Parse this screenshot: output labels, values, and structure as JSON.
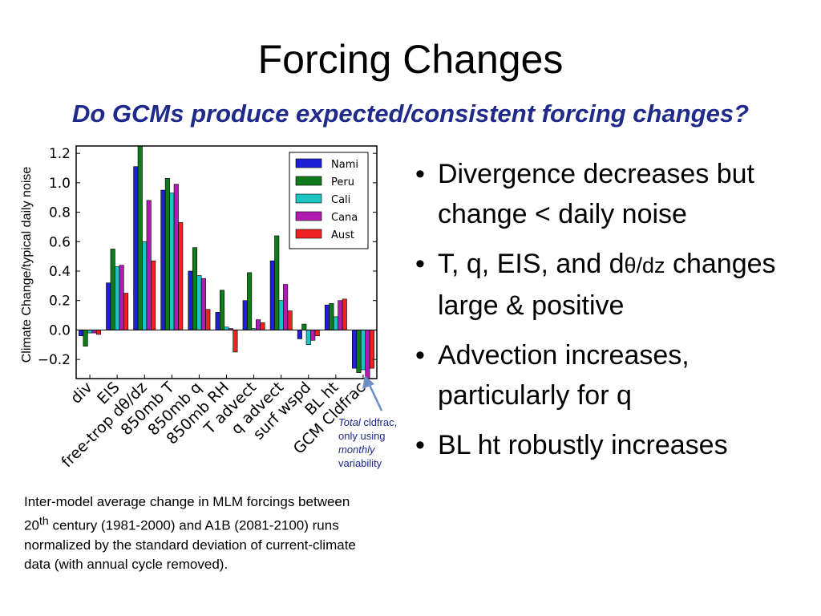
{
  "slide": {
    "title": "Forcing Changes",
    "subtitle": "Do GCMs produce expected/consistent forcing changes?",
    "note": {
      "w1": "Total",
      "w2": " cldfrac,",
      "w3": "only using",
      "w4": "monthly",
      "w5": "variability"
    },
    "caption": {
      "part1": "Inter-model average change in MLM forcings between 20",
      "sup": "th",
      "part2": " century (1981-2000) and A1B (2081-2100) runs normalized by the standard deviation of current-climate data (with annual cycle removed)."
    },
    "bullets": [
      {
        "text": "Divergence decreases but change < daily noise"
      },
      {
        "pre": "T, q, EIS, and d",
        "sym": "θ/dz",
        "post": " changes large & positive"
      },
      {
        "text": "Advection increases, particularly for q"
      },
      {
        "text": "BL ht robustly increases"
      }
    ],
    "bullet_glyph": "•"
  },
  "chart_data": {
    "type": "bar",
    "ylabel": "Climate Change/typical daily noise",
    "ylim": [
      -0.33,
      1.25
    ],
    "yticks": [
      "1.2",
      "1.0",
      "0.8",
      "0.6",
      "0.4",
      "0.2",
      "0.0",
      "−0.2"
    ],
    "ytick_values": [
      1.2,
      1.0,
      0.8,
      0.6,
      0.4,
      0.2,
      0.0,
      -0.2
    ],
    "categories": [
      "div",
      "EIS",
      "free-trop dθ/dz",
      "850mb T",
      "850mb q",
      "850mb RH",
      "T advect",
      "q advect",
      "surf wspd",
      "BL ht",
      "GCM Cldfrac"
    ],
    "series": [
      {
        "name": "Nami",
        "color": "#1f1fd6",
        "values": [
          -0.04,
          0.32,
          1.11,
          0.95,
          0.4,
          0.12,
          0.2,
          0.47,
          -0.06,
          0.17,
          -0.26
        ]
      },
      {
        "name": "Peru",
        "color": "#0f7a1a",
        "values": [
          -0.11,
          0.55,
          1.25,
          1.03,
          0.56,
          0.27,
          0.39,
          0.64,
          0.04,
          0.18,
          -0.29
        ]
      },
      {
        "name": "Cali",
        "color": "#1cc4c4",
        "values": [
          -0.02,
          0.43,
          0.6,
          0.93,
          0.37,
          0.02,
          0.01,
          0.2,
          -0.1,
          0.09,
          -0.27
        ]
      },
      {
        "name": "Cana",
        "color": "#b01cb0",
        "values": [
          -0.02,
          0.44,
          0.88,
          0.99,
          0.35,
          0.01,
          0.07,
          0.31,
          -0.07,
          0.2,
          -0.33
        ]
      },
      {
        "name": "Aust",
        "color": "#ee2222",
        "values": [
          -0.03,
          0.25,
          0.47,
          0.73,
          0.14,
          -0.15,
          0.05,
          0.13,
          -0.04,
          0.21,
          -0.26
        ]
      }
    ],
    "legend_position": "upper-right",
    "grid": false,
    "annotation_arrow": "blue arrow from note text to GCM Cldfrac bars"
  }
}
